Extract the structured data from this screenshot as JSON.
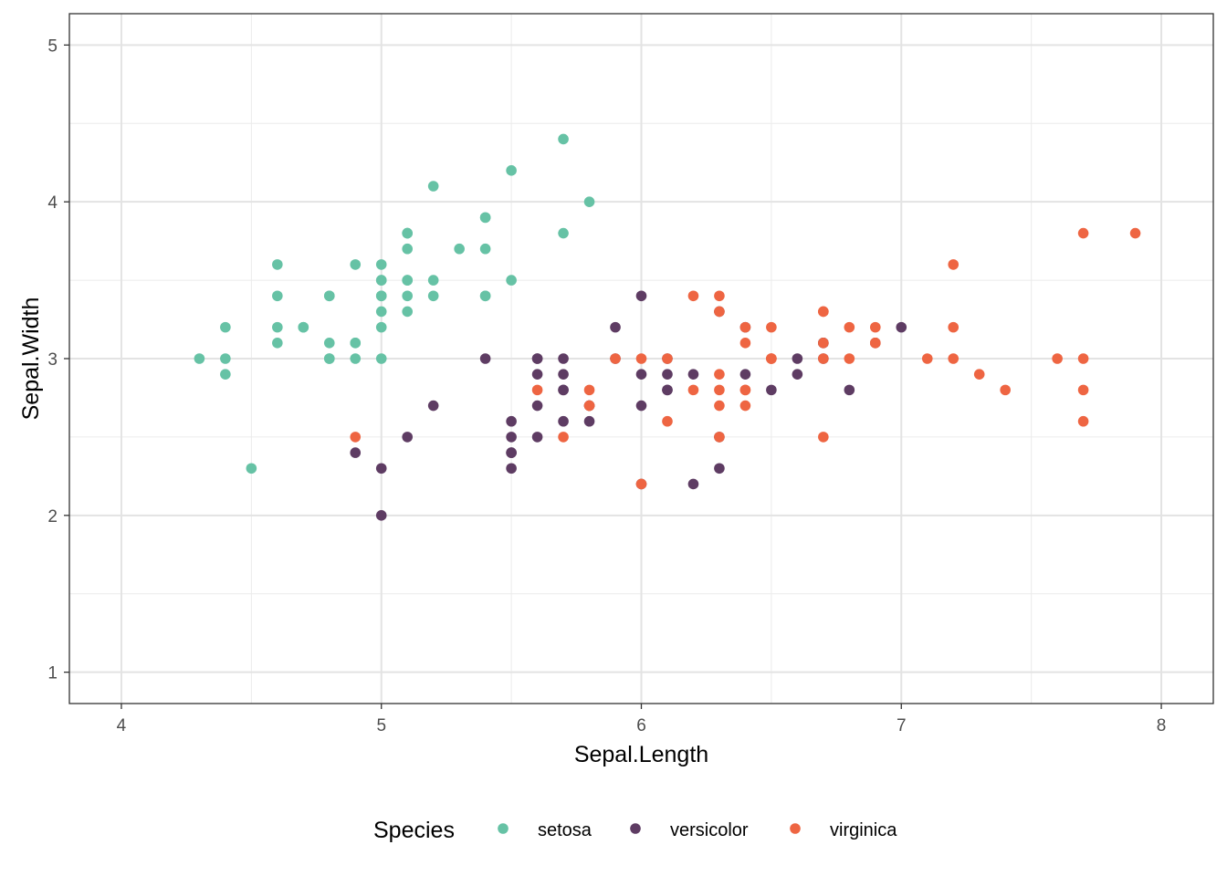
{
  "chart_data": {
    "type": "scatter",
    "title": "",
    "xlabel": "Sepal.Length",
    "ylabel": "Sepal.Width",
    "xlim": [
      3.8,
      8.2
    ],
    "ylim": [
      0.8,
      5.2
    ],
    "x_ticks": [
      "4",
      "5",
      "6",
      "7",
      "8"
    ],
    "y_ticks": [
      "1",
      "2",
      "3",
      "4",
      "5"
    ],
    "grid": true,
    "legend": {
      "title": "Species",
      "position": "bottom"
    },
    "series": [
      {
        "name": "setosa",
        "color": "#66c2a5",
        "x": [
          5.1,
          4.9,
          4.7,
          4.6,
          5.0,
          5.4,
          4.6,
          5.0,
          4.4,
          4.9,
          5.4,
          4.8,
          4.8,
          4.3,
          5.8,
          5.7,
          5.4,
          5.1,
          5.7,
          5.1,
          5.4,
          5.1,
          4.6,
          5.1,
          4.8,
          5.0,
          5.0,
          5.2,
          5.2,
          4.7,
          4.8,
          5.4,
          5.2,
          5.5,
          4.9,
          5.0,
          5.5,
          4.9,
          4.4,
          5.1,
          5.0,
          4.5,
          4.4,
          5.0,
          5.1,
          4.8,
          5.1,
          4.6,
          5.3,
          5.0
        ],
        "y": [
          3.5,
          3.0,
          3.2,
          3.1,
          3.6,
          3.9,
          3.4,
          3.4,
          2.9,
          3.1,
          3.7,
          3.4,
          3.0,
          3.0,
          4.0,
          4.4,
          3.9,
          3.5,
          3.8,
          3.8,
          3.4,
          3.7,
          3.6,
          3.3,
          3.4,
          3.0,
          3.4,
          3.5,
          3.4,
          3.2,
          3.1,
          3.4,
          4.1,
          4.2,
          3.1,
          3.2,
          3.5,
          3.6,
          3.0,
          3.4,
          3.5,
          2.3,
          3.2,
          3.5,
          3.8,
          3.0,
          3.8,
          3.2,
          3.7,
          3.3
        ]
      },
      {
        "name": "versicolor",
        "color": "#5e3c63",
        "x": [
          7.0,
          6.4,
          6.9,
          5.5,
          6.5,
          5.7,
          6.3,
          4.9,
          6.6,
          5.2,
          5.0,
          5.9,
          6.0,
          6.1,
          5.6,
          6.7,
          5.6,
          5.8,
          6.2,
          5.6,
          5.9,
          6.1,
          6.3,
          6.1,
          6.4,
          6.6,
          6.8,
          6.7,
          6.0,
          5.7,
          5.5,
          5.5,
          5.8,
          6.0,
          5.4,
          6.0,
          6.7,
          6.3,
          5.6,
          5.5,
          5.5,
          6.1,
          5.8,
          5.0,
          5.6,
          5.7,
          5.7,
          6.2,
          5.1,
          5.7
        ],
        "y": [
          3.2,
          3.2,
          3.1,
          2.3,
          2.8,
          2.8,
          3.3,
          2.4,
          2.9,
          2.7,
          2.0,
          3.0,
          2.2,
          2.9,
          2.9,
          3.1,
          3.0,
          2.7,
          2.2,
          2.5,
          3.2,
          2.8,
          2.5,
          2.8,
          2.9,
          3.0,
          2.8,
          3.0,
          2.9,
          2.6,
          2.4,
          2.4,
          2.7,
          2.7,
          3.0,
          3.4,
          3.1,
          2.3,
          3.0,
          2.5,
          2.6,
          3.0,
          2.6,
          2.3,
          2.7,
          3.0,
          2.9,
          2.9,
          2.5,
          2.8
        ]
      },
      {
        "name": "virginica",
        "color": "#ee6542",
        "x": [
          6.3,
          5.8,
          7.1,
          6.3,
          6.5,
          7.6,
          4.9,
          7.3,
          6.7,
          7.2,
          6.5,
          6.4,
          6.8,
          5.7,
          5.8,
          6.4,
          6.5,
          7.7,
          7.7,
          6.0,
          6.9,
          5.6,
          7.7,
          6.3,
          6.7,
          7.2,
          6.2,
          6.1,
          6.4,
          7.2,
          7.4,
          7.9,
          6.4,
          6.3,
          6.1,
          7.7,
          6.3,
          6.4,
          6.0,
          6.9,
          6.7,
          6.9,
          5.8,
          6.8,
          6.7,
          6.7,
          6.3,
          6.5,
          6.2,
          5.9
        ],
        "y": [
          3.3,
          2.7,
          3.0,
          2.9,
          3.0,
          3.0,
          2.5,
          2.9,
          2.5,
          3.6,
          3.2,
          2.7,
          3.0,
          2.5,
          2.8,
          3.2,
          3.0,
          3.8,
          2.6,
          2.2,
          3.2,
          2.8,
          2.8,
          2.7,
          3.3,
          3.2,
          2.8,
          3.0,
          2.8,
          3.0,
          2.8,
          3.8,
          2.8,
          2.8,
          2.6,
          3.0,
          3.4,
          3.1,
          3.0,
          3.1,
          3.1,
          3.1,
          2.7,
          3.2,
          3.3,
          3.0,
          2.5,
          3.0,
          3.4,
          3.0
        ]
      }
    ]
  }
}
